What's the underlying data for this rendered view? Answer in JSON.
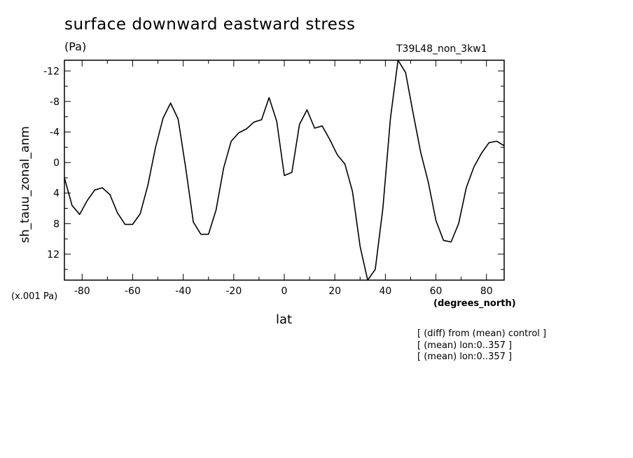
{
  "chart_data": {
    "type": "line",
    "title": "surface downward eastward stress",
    "units": "(Pa)",
    "run_label": "T39L48_non_3kw1",
    "ylabel": "sh_tauu_zonal_anm",
    "xlabel": "lat",
    "x_units": "(degrees_north)",
    "y_scale_note": "(x.001 Pa)",
    "xlim": [
      -87,
      87
    ],
    "ylim": [
      -13.4,
      15.4
    ],
    "y_inverted": true,
    "x_ticks": [
      -80,
      -60,
      -40,
      -20,
      0,
      20,
      40,
      60,
      80
    ],
    "x_tick_labels": [
      "-80",
      "-60",
      "-40",
      "-20",
      "0",
      "20",
      "40",
      "60",
      "80"
    ],
    "y_ticks": [
      -12,
      -8,
      -4,
      0,
      4,
      8,
      12
    ],
    "y_tick_labels": [
      "-12",
      "-8",
      "-4",
      "0",
      "4",
      "8",
      "12"
    ],
    "grid": false,
    "series": [
      {
        "color": "#000000",
        "x": [
          -87,
          -84,
          -81,
          -78,
          -75,
          -72,
          -69,
          -66,
          -63,
          -60,
          -57,
          -54,
          -51,
          -48,
          -45,
          -42,
          -39,
          -36,
          -33,
          -30,
          -27,
          -24,
          -21,
          -18,
          -15,
          -12,
          -9,
          -6,
          -3,
          0,
          3,
          6,
          9,
          12,
          15,
          18,
          21,
          24,
          27,
          30,
          33,
          36,
          39,
          42,
          45,
          48,
          51,
          54,
          57,
          60,
          63,
          66,
          69,
          72,
          75,
          78,
          81,
          84,
          87
        ],
        "y": [
          2.0,
          5.6,
          6.8,
          5.0,
          3.6,
          3.3,
          4.2,
          6.6,
          8.1,
          8.1,
          6.7,
          3.0,
          -1.9,
          -5.8,
          -7.8,
          -5.7,
          0.7,
          7.8,
          9.4,
          9.4,
          6.2,
          0.7,
          -2.8,
          -3.9,
          -4.4,
          -5.3,
          -5.6,
          -8.5,
          -5.4,
          1.7,
          1.3,
          -5.0,
          -6.9,
          -4.5,
          -4.8,
          -3.0,
          -1.0,
          0.2,
          3.8,
          11.0,
          15.4,
          14.0,
          6.0,
          -5.8,
          -13.4,
          -11.8,
          -6.4,
          -1.3,
          2.6,
          7.6,
          10.2,
          10.4,
          8.0,
          3.3,
          0.6,
          -1.2,
          -2.6,
          -2.8,
          -2.2
        ]
      }
    ],
    "notes": [
      "[ (diff) from (mean) control ]",
      "[ (mean) lon:0..357 ]",
      "[ (mean) lon:0..357 ]"
    ]
  }
}
